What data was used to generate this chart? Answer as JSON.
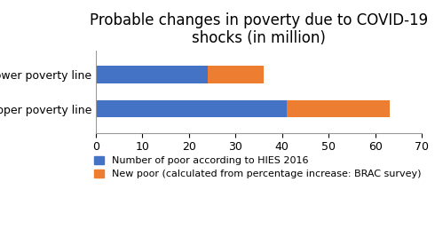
{
  "title": "Probable changes in poverty due to COVID-19\nshocks (in million)",
  "categories": [
    "Lower poverty line",
    "Upper poverty line"
  ],
  "blue_values": [
    24,
    41
  ],
  "orange_values": [
    12,
    22
  ],
  "blue_color": "#4472C4",
  "orange_color": "#ED7D31",
  "xlim": [
    0,
    70
  ],
  "xticks": [
    0,
    10,
    20,
    30,
    40,
    50,
    60,
    70
  ],
  "legend_blue": "Number of poor according to HIES 2016",
  "legend_orange": "New poor (calculated from percentage increase: BRAC survey)",
  "title_fontsize": 12,
  "tick_fontsize": 9,
  "label_fontsize": 9,
  "legend_fontsize": 8,
  "bar_height": 0.5
}
